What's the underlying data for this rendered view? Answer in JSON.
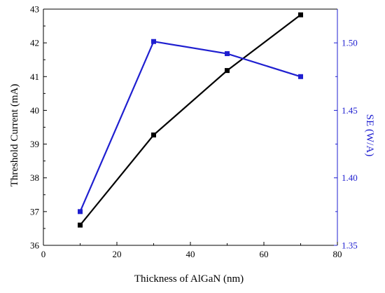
{
  "chart_data": {
    "type": "line",
    "title": "",
    "xlabel": "Thickness of AlGaN (nm)",
    "ylabel_left": "Threshold Current (mA)",
    "ylabel_right": "SE (W/A)",
    "xlim": [
      0,
      80
    ],
    "ylim_left": [
      36,
      43
    ],
    "ylim_right": [
      1.35,
      1.525
    ],
    "x_ticks": [
      "0",
      "20",
      "40",
      "60",
      "80"
    ],
    "y_left_ticks": [
      "36",
      "37",
      "38",
      "39",
      "40",
      "41",
      "42",
      "43"
    ],
    "y_right_ticks": [
      "1.35",
      "1.40",
      "1.45",
      "1.50"
    ],
    "grid": false,
    "legend": "none",
    "series": [
      {
        "axis": "left",
        "color": "#000000",
        "marker": "square",
        "x": [
          10,
          30,
          50,
          70
        ],
        "y": [
          36.6,
          39.27,
          41.18,
          42.83
        ]
      },
      {
        "axis": "right",
        "color": "#1f1fd0",
        "marker": "square",
        "x": [
          10,
          30,
          50,
          70
        ],
        "y": [
          1.375,
          1.501,
          1.492,
          1.475
        ]
      }
    ]
  }
}
